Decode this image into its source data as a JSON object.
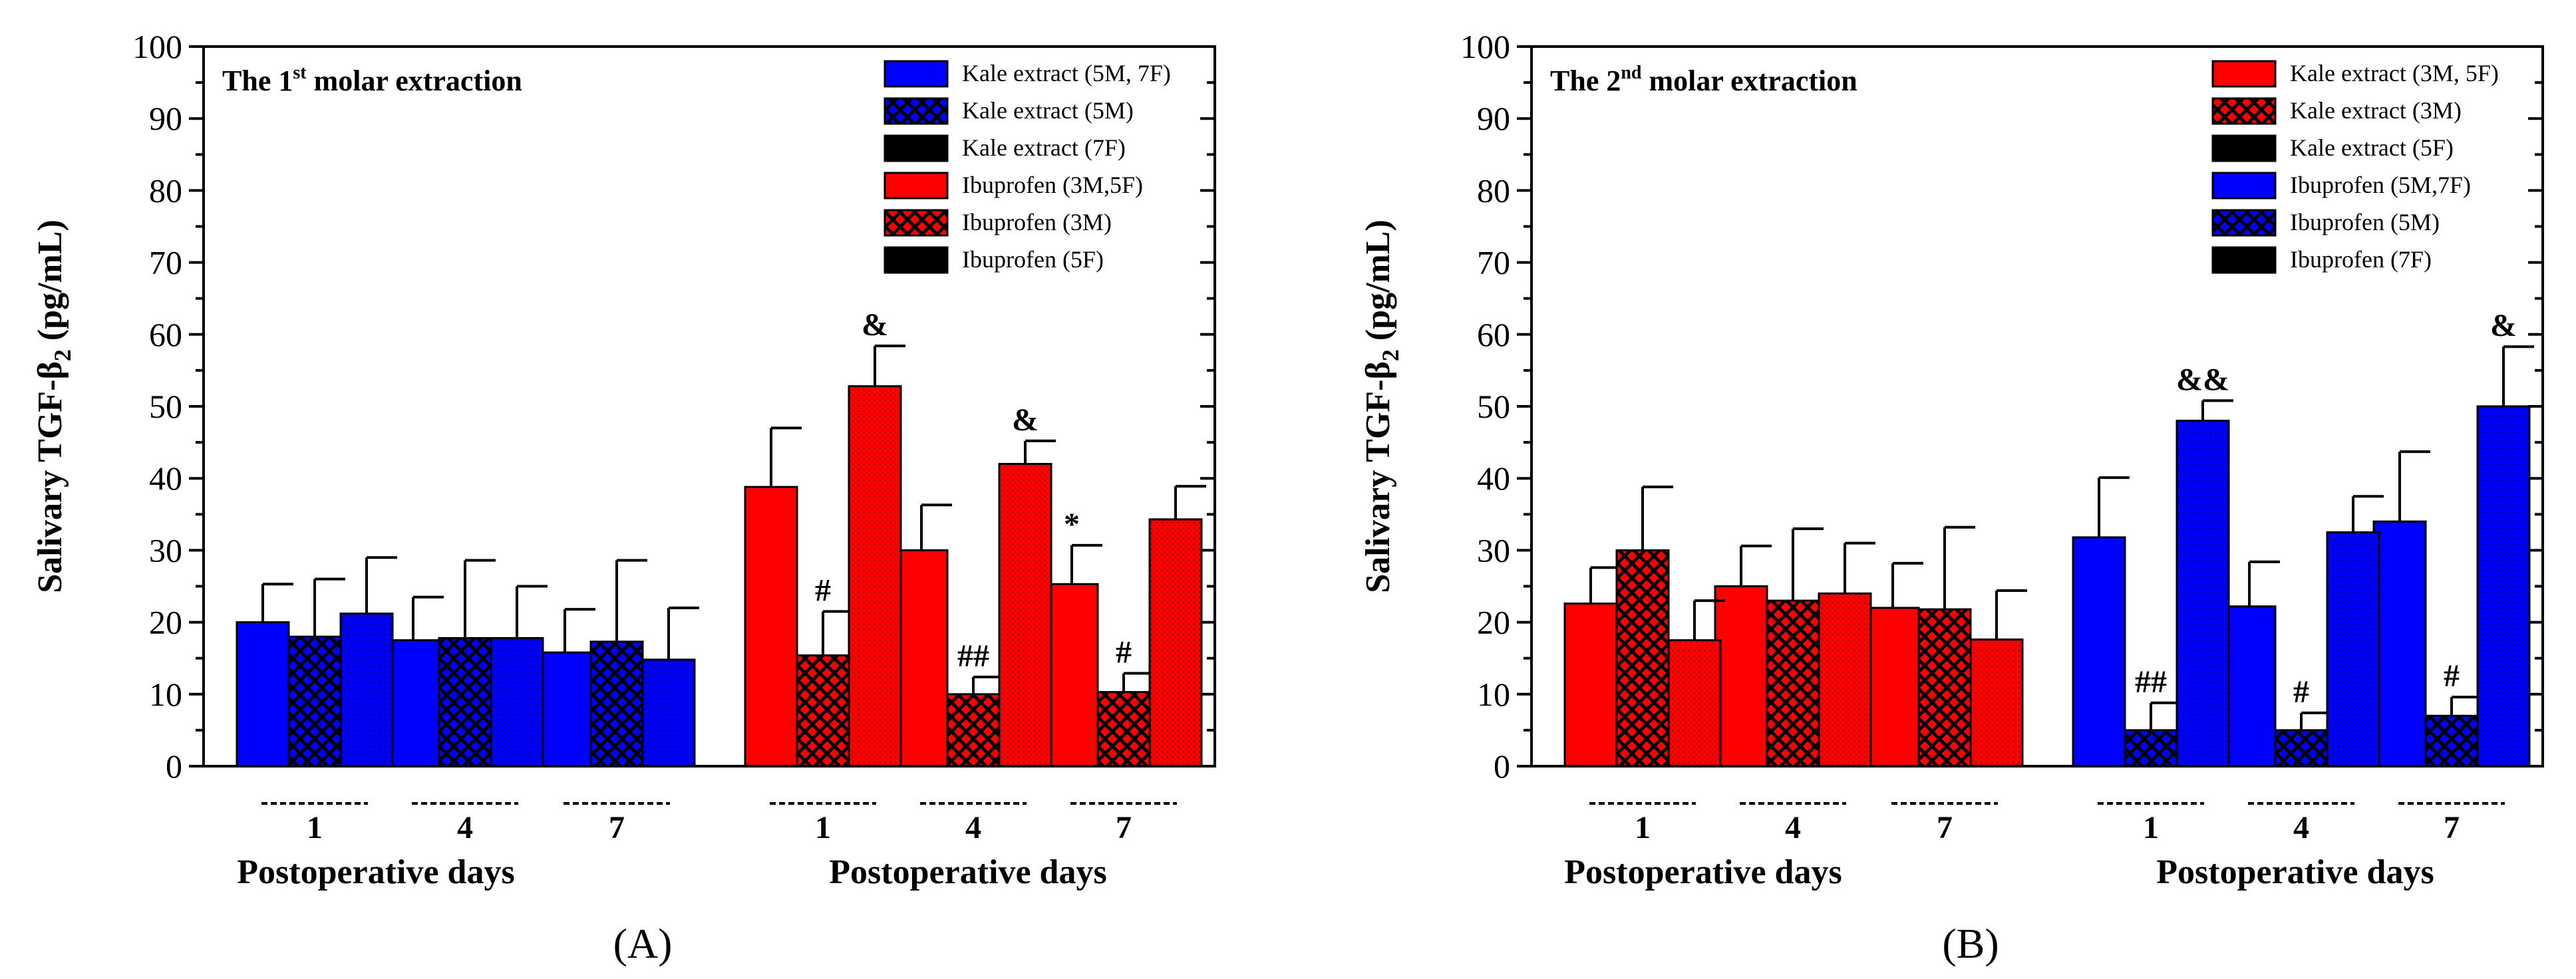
{
  "figure": {
    "panel_labels": [
      "(A)",
      "(B)"
    ]
  },
  "colors": {
    "red": "#ff0000",
    "blue": "#0000ff",
    "dark_red": "#b80000",
    "dark_blue": "#0000b0",
    "black": "#000000"
  },
  "chart_data": [
    {
      "type": "bar",
      "title": "The 1st molar extraction",
      "title_main": "The 1",
      "title_sup": "st",
      "title_rest": " molar extraction",
      "ylabel": "Salivary TGF-β2 (pg/mL)",
      "ylabel_main": "Salivary TGF-β",
      "ylabel_sub": "2",
      "ylabel_rest": " (pg/mL)",
      "ylim": [
        0,
        100
      ],
      "yticks": [
        0,
        10,
        20,
        30,
        40,
        50,
        60,
        70,
        80,
        90,
        100
      ],
      "legend_position": "top-right",
      "groups": [
        {
          "xlabel": "Postoperative days",
          "categories": [
            "1",
            "4",
            "7"
          ],
          "series": [
            {
              "name": "Kale extract (5M, 7F)",
              "color": "#0000ff",
              "pattern": "solid",
              "values": [
                20.0,
                17.5,
                15.8
              ],
              "errors": [
                5.3,
                6.0,
                6.0
              ],
              "annotations": [
                "",
                "",
                ""
              ]
            },
            {
              "name": "Kale extract (5M)",
              "color": "#0000ff",
              "pattern": "crosshatch",
              "values": [
                18.0,
                17.8,
                17.3
              ],
              "errors": [
                8.0,
                10.8,
                11.3
              ],
              "annotations": [
                "",
                "",
                ""
              ]
            },
            {
              "name": "Kale extract (7F)",
              "color": "#0000ff",
              "pattern": "dots",
              "values": [
                21.2,
                17.8,
                14.8
              ],
              "errors": [
                7.8,
                7.2,
                7.2
              ],
              "annotations": [
                "",
                "",
                ""
              ]
            }
          ]
        },
        {
          "xlabel": "Postoperative days",
          "categories": [
            "1",
            "4",
            "7"
          ],
          "series": [
            {
              "name": "Ibuprofen (3M,5F)",
              "color": "#ff0000",
              "pattern": "solid",
              "values": [
                38.8,
                30.0,
                25.3
              ],
              "errors": [
                8.2,
                6.3,
                5.4
              ],
              "annotations": [
                "",
                "",
                "*"
              ]
            },
            {
              "name": "Ibuprofen (3M)",
              "color": "#ff0000",
              "pattern": "crosshatch",
              "values": [
                15.4,
                10.0,
                10.3
              ],
              "errors": [
                6.1,
                2.4,
                2.6
              ],
              "annotations": [
                "#",
                "##",
                "#"
              ]
            },
            {
              "name": "Ibuprofen (5F)",
              "color": "#ff0000",
              "pattern": "dots",
              "values": [
                52.8,
                42.0,
                34.3
              ],
              "errors": [
                5.6,
                3.2,
                4.6
              ],
              "annotations": [
                "&",
                "&",
                ""
              ]
            }
          ]
        }
      ]
    },
    {
      "type": "bar",
      "title": "The 2nd molar extraction",
      "title_main": "The 2",
      "title_sup": "nd",
      "title_rest": " molar extraction",
      "ylabel": "Salivary TGF-β2 (pg/mL)",
      "ylabel_main": "Salivary TGF-β",
      "ylabel_sub": "2",
      "ylabel_rest": " (pg/mL)",
      "ylim": [
        0,
        100
      ],
      "yticks": [
        0,
        10,
        20,
        30,
        40,
        50,
        60,
        70,
        80,
        90,
        100
      ],
      "legend_position": "top-right",
      "groups": [
        {
          "xlabel": "Postoperative days",
          "categories": [
            "1",
            "4",
            "7"
          ],
          "series": [
            {
              "name": "Kale extract (3M, 5F)",
              "color": "#ff0000",
              "pattern": "solid",
              "values": [
                22.6,
                25.0,
                22.0
              ],
              "errors": [
                5.0,
                5.6,
                6.2
              ],
              "annotations": [
                "",
                "",
                ""
              ]
            },
            {
              "name": "Kale extract (3M)",
              "color": "#ff0000",
              "pattern": "crosshatch",
              "values": [
                30.0,
                23.0,
                21.8
              ],
              "errors": [
                8.8,
                10.0,
                11.4
              ],
              "annotations": [
                "",
                "",
                ""
              ]
            },
            {
              "name": "Kale extract (5F)",
              "color": "#ff0000",
              "pattern": "dots",
              "values": [
                17.5,
                24.0,
                17.6
              ],
              "errors": [
                5.5,
                7.0,
                6.8
              ],
              "annotations": [
                "",
                "",
                ""
              ]
            }
          ]
        },
        {
          "xlabel": "Postoperative days",
          "categories": [
            "1",
            "4",
            "7"
          ],
          "series": [
            {
              "name": "Ibuprofen (5M,7F)",
              "color": "#0000ff",
              "pattern": "solid",
              "values": [
                31.8,
                22.2,
                34.0
              ],
              "errors": [
                8.3,
                6.2,
                9.7
              ],
              "annotations": [
                "",
                "",
                ""
              ]
            },
            {
              "name": "Ibuprofen (5M)",
              "color": "#0000ff",
              "pattern": "crosshatch",
              "values": [
                5.0,
                5.0,
                7.0
              ],
              "errors": [
                3.8,
                2.4,
                2.6
              ],
              "annotations": [
                "##",
                "#",
                "#"
              ]
            },
            {
              "name": "Ibuprofen (7F)",
              "color": "#0000ff",
              "pattern": "dots",
              "values": [
                48.0,
                32.5,
                50.0
              ],
              "errors": [
                2.8,
                5.0,
                8.3
              ],
              "annotations": [
                "&&",
                "",
                "&"
              ]
            }
          ]
        }
      ]
    }
  ]
}
